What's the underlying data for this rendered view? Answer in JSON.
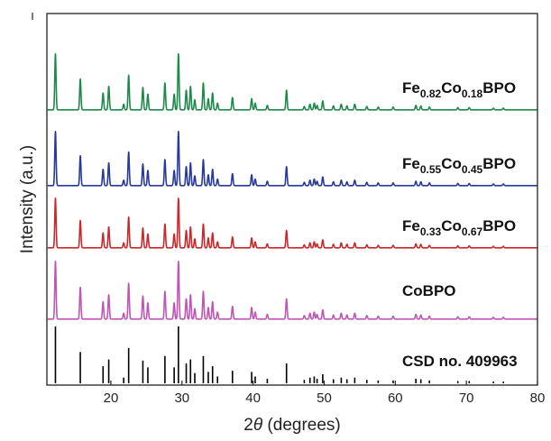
{
  "chart_data": {
    "type": "line",
    "xlabel_prefix": "2",
    "xlabel_theta": "θ",
    "xlabel_suffix": " (degrees)",
    "ylabel": "Intensity (a.u.)",
    "xlim": [
      11,
      80
    ],
    "xticks": [
      20,
      30,
      40,
      50,
      60,
      70,
      80
    ],
    "grid": false,
    "peaks": [
      {
        "x": 12.2,
        "h": 1.0
      },
      {
        "x": 15.7,
        "h": 0.55
      },
      {
        "x": 18.9,
        "h": 0.3
      },
      {
        "x": 19.7,
        "h": 0.42
      },
      {
        "x": 21.8,
        "h": 0.1
      },
      {
        "x": 22.5,
        "h": 0.62
      },
      {
        "x": 24.5,
        "h": 0.4
      },
      {
        "x": 25.2,
        "h": 0.28
      },
      {
        "x": 27.6,
        "h": 0.48
      },
      {
        "x": 28.9,
        "h": 0.28
      },
      {
        "x": 29.5,
        "h": 1.0
      },
      {
        "x": 30.6,
        "h": 0.35
      },
      {
        "x": 31.2,
        "h": 0.42
      },
      {
        "x": 31.8,
        "h": 0.18
      },
      {
        "x": 33.0,
        "h": 0.48
      },
      {
        "x": 33.7,
        "h": 0.2
      },
      {
        "x": 34.3,
        "h": 0.3
      },
      {
        "x": 35.0,
        "h": 0.12
      },
      {
        "x": 37.1,
        "h": 0.22
      },
      {
        "x": 39.8,
        "h": 0.2
      },
      {
        "x": 40.3,
        "h": 0.12
      },
      {
        "x": 42.0,
        "h": 0.08
      },
      {
        "x": 44.7,
        "h": 0.35
      },
      {
        "x": 47.2,
        "h": 0.06
      },
      {
        "x": 48.0,
        "h": 0.1
      },
      {
        "x": 48.6,
        "h": 0.12
      },
      {
        "x": 49.0,
        "h": 0.08
      },
      {
        "x": 49.8,
        "h": 0.16
      },
      {
        "x": 51.3,
        "h": 0.07
      },
      {
        "x": 52.4,
        "h": 0.1
      },
      {
        "x": 53.2,
        "h": 0.07
      },
      {
        "x": 54.3,
        "h": 0.1
      },
      {
        "x": 56.0,
        "h": 0.06
      },
      {
        "x": 57.6,
        "h": 0.05
      },
      {
        "x": 59.7,
        "h": 0.05
      },
      {
        "x": 62.9,
        "h": 0.08
      },
      {
        "x": 63.6,
        "h": 0.07
      },
      {
        "x": 64.8,
        "h": 0.05
      },
      {
        "x": 68.8,
        "h": 0.04
      },
      {
        "x": 70.4,
        "h": 0.04
      },
      {
        "x": 73.8,
        "h": 0.03
      },
      {
        "x": 75.2,
        "h": 0.03
      }
    ],
    "series": [
      {
        "label_parts": [
          [
            "Fe",
            ""
          ],
          [
            "0.82",
            "sub"
          ],
          [
            "Co",
            ""
          ],
          [
            "0.18",
            "sub"
          ],
          [
            "BPO",
            ""
          ]
        ],
        "color": "#1e8a4a",
        "kind": "line"
      },
      {
        "label_parts": [
          [
            "Fe",
            ""
          ],
          [
            "0.55",
            "sub"
          ],
          [
            "Co",
            ""
          ],
          [
            "0.45",
            "sub"
          ],
          [
            "BPO",
            ""
          ]
        ],
        "color": "#27399a",
        "kind": "line"
      },
      {
        "label_parts": [
          [
            "Fe",
            ""
          ],
          [
            "0.33",
            "sub"
          ],
          [
            "Co",
            ""
          ],
          [
            "0.67",
            "sub"
          ],
          [
            "BPO",
            ""
          ]
        ],
        "color": "#c9292b",
        "kind": "line"
      },
      {
        "label_parts": [
          [
            "CoBPO",
            ""
          ]
        ],
        "color": "#bf55b4",
        "kind": "line"
      },
      {
        "label_parts": [
          [
            "CSD no. 409963",
            ""
          ]
        ],
        "color": "#000000",
        "kind": "sticks"
      }
    ]
  }
}
